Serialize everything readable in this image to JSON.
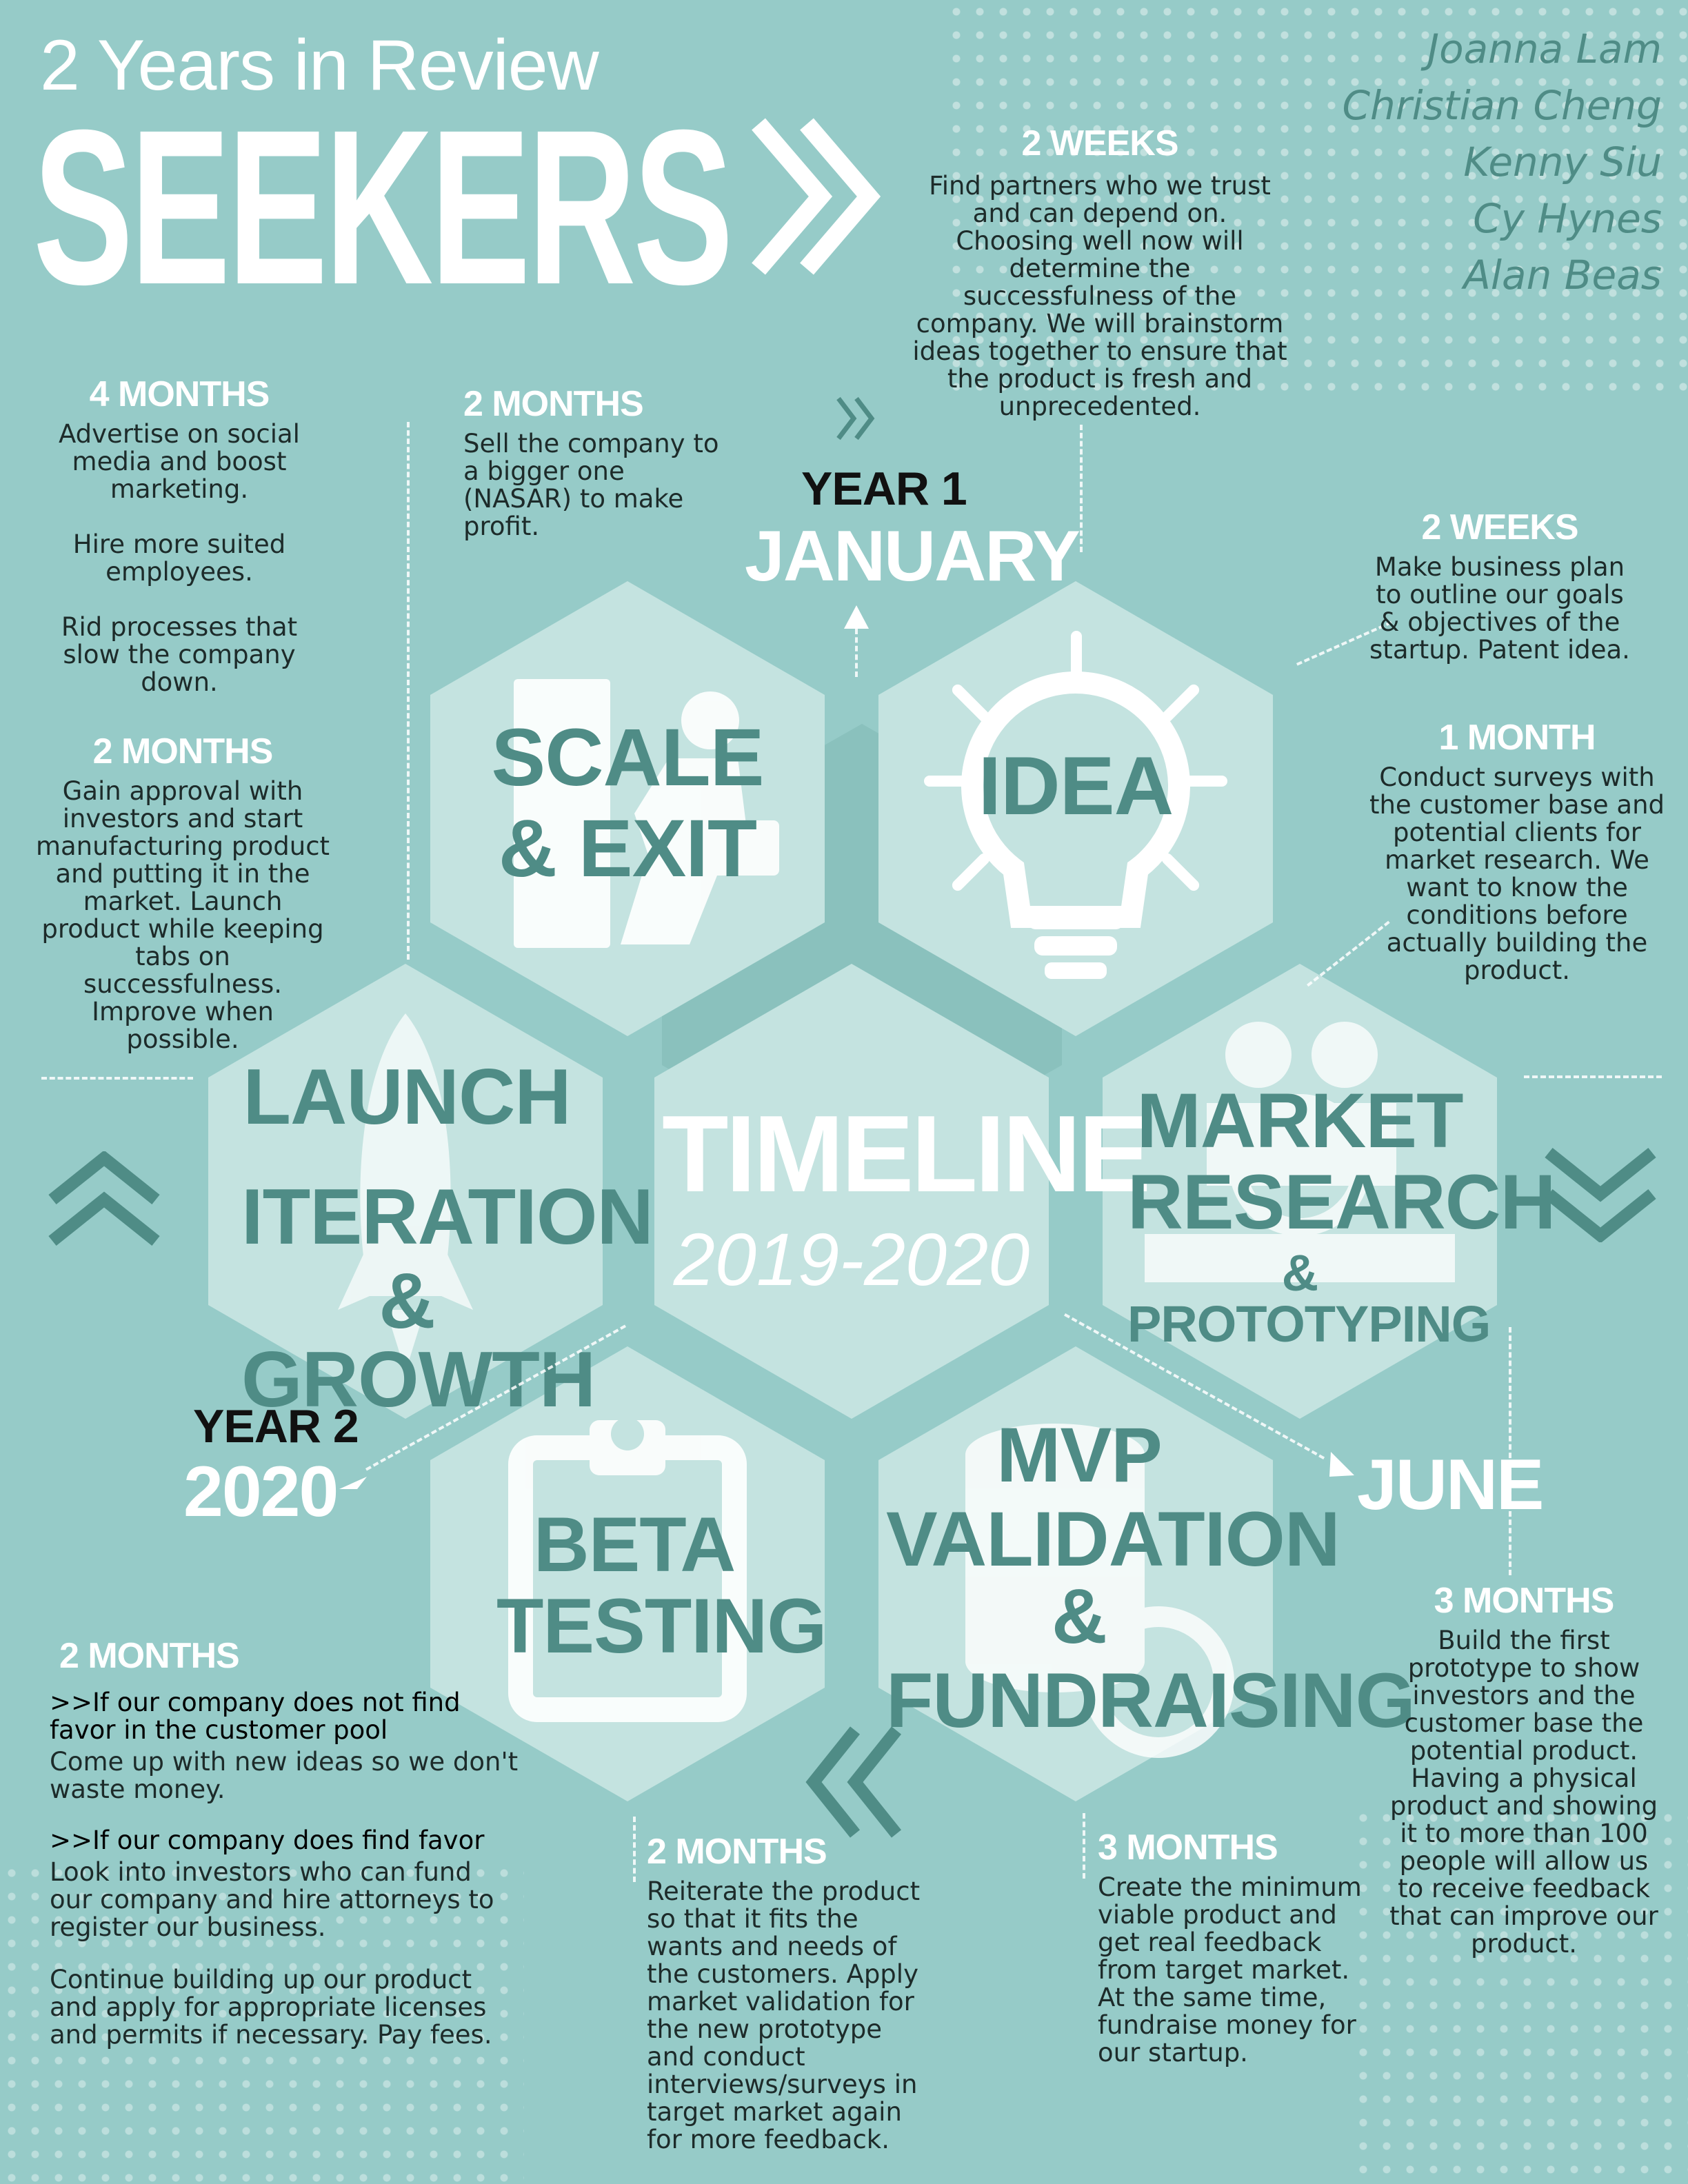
{
  "header": {
    "subtitle": "2 Years in Review",
    "title": "SEEKERS",
    "chevron": "»"
  },
  "team": [
    "Joanna Lam",
    "Christian Cheng",
    "Kenny Siu",
    "Cy Hynes",
    "Alan Beas"
  ],
  "center": {
    "title": "TIMELINE",
    "years": "2019-2020"
  },
  "hexagons": {
    "scale": {
      "line1": "SCALE",
      "line2": "& EXIT",
      "icon": "exit-door-icon"
    },
    "idea": {
      "label": "IDEA",
      "icon": "lightbulb-icon"
    },
    "market": {
      "line1": "MARKET",
      "line2": "RESEARCH",
      "line3": "& PROTOTYPING",
      "icon": "people-search-icon"
    },
    "mvp": {
      "line1": "MVP",
      "line2": "VALIDATION &",
      "line3": "FUNDRAISING",
      "icon": "coins-search-icon"
    },
    "beta": {
      "line1": "BETA",
      "line2": "TESTING",
      "icon": "clipboard-icon"
    },
    "launch": {
      "line1": "LAUNCH",
      "line2": "ITERATION",
      "line3": "& GROWTH",
      "icon": "rocket-icon"
    }
  },
  "markers": {
    "year1": "YEAR 1",
    "january": "JANUARY",
    "june": "JUNE",
    "year2": "YEAR 2",
    "y2020": "2020"
  },
  "steps": {
    "s1": {
      "duration": "2 WEEKS",
      "text": "Find partners who we trust and can depend on. Choosing well now will determine the successfulness of the company. We will brainstorm ideas together to ensure that the product is fresh and unprecedented."
    },
    "s2": {
      "duration": "2 WEEKS",
      "text": "Make business plan to outline our goals & objectives of the startup. Patent idea."
    },
    "s3": {
      "duration": "1 MONTH",
      "text": "Conduct surveys with the customer base and potential clients for market research. We want to know the conditions before actually building the product."
    },
    "s4": {
      "duration": "3 MONTHS",
      "text": "Build the first prototype to show investors and the customer base the potential product. Having a physical product and showing it to more than 100 people will allow us to receive feedback that can improve our product."
    },
    "s5": {
      "duration": "3 MONTHS",
      "text": "Create the minimum viable product and get real feedback from target market. At the same time, fundraise money for our startup."
    },
    "s6": {
      "duration": "2 MONTHS",
      "text": "Reiterate the product so that it fits the wants and needs of the customers. Apply market validation for the new prototype and conduct interviews/surveys in target market again for more feedback."
    },
    "s7": {
      "duration": "2 MONTHS",
      "case1_title": ">>If our company does not find favor in the customer pool",
      "case1_text": "Come up with new ideas so we don't waste money.",
      "case2_title": ">>If our company does find favor",
      "case2_text": "Look into investors who can fund our company and hire attorneys to register our business.",
      "case2_text2": "Continue building up our product and apply for appropriate licenses and permits if necessary. Pay fees."
    },
    "s8": {
      "duration": "2 MONTHS",
      "text": "Gain approval with investors and start manufacturing product and putting it in the market. Launch product while keeping tabs on successfulness. Improve when possible."
    },
    "s9": {
      "duration": "4 MONTHS",
      "p1": "Advertise on social media and boost marketing.",
      "p2": "Hire more suited employees.",
      "p3": "Rid processes that slow the company down."
    },
    "s10": {
      "duration": "2 MONTHS",
      "text": "Sell the company to a bigger one (NASAR) to make profit."
    }
  },
  "colors": {
    "background": "#96cbc8",
    "hex_fill": "#c4e3e0",
    "hex_label": "#4f8c86",
    "accent_dark": "#4f8c86",
    "text": "#1d2b2a"
  }
}
